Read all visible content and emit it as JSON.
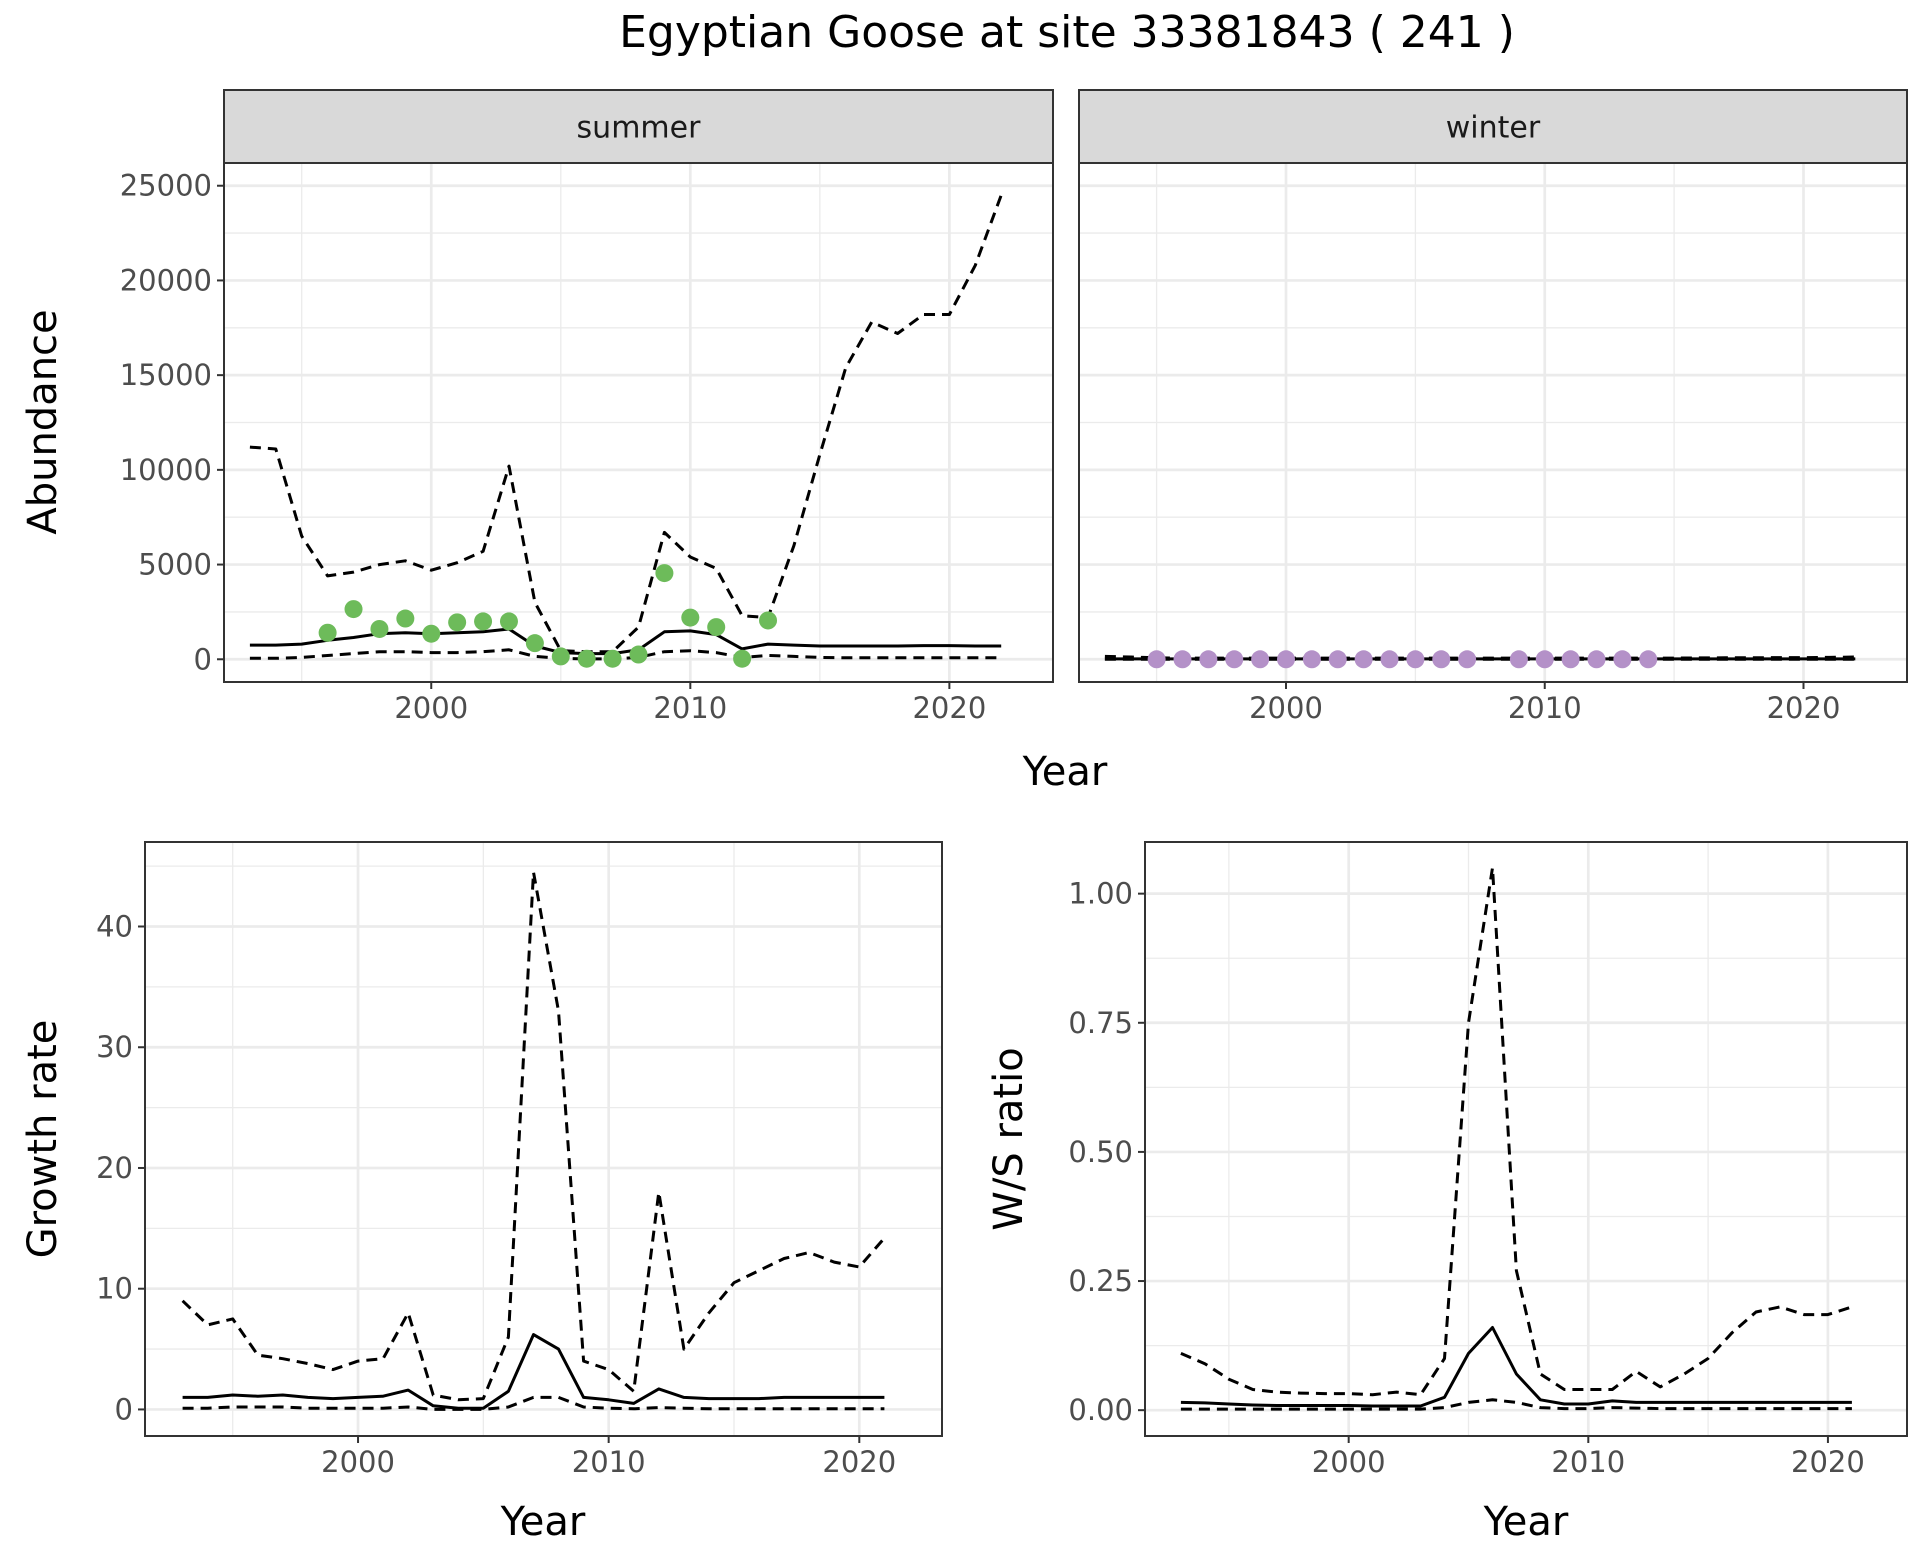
{
  "page": {
    "title": "Egyptian Goose at site 33381843 ( 241 )"
  },
  "colors": {
    "summer_points": "#6dbb5a",
    "winter_points": "#b491c8",
    "lines": "#000000",
    "grid": "#ebebeb",
    "strip_fill": "#d9d9d9",
    "panel_border": "#333333"
  },
  "chart_data": [
    {
      "id": "abundance",
      "type": "line",
      "facets": [
        "summer",
        "winter"
      ],
      "xlabel": "Year",
      "ylabel": "Abundance",
      "xlim": [
        1992,
        2024
      ],
      "ylim": [
        -1200,
        26200
      ],
      "xticks": [
        2000,
        2010,
        2020
      ],
      "yticks": [
        0,
        5000,
        10000,
        15000,
        20000,
        25000
      ],
      "x": [
        1993,
        1994,
        1995,
        1996,
        1997,
        1998,
        1999,
        2000,
        2001,
        2002,
        2003,
        2004,
        2005,
        2006,
        2007,
        2008,
        2009,
        2010,
        2011,
        2012,
        2013,
        2014,
        2015,
        2016,
        2017,
        2018,
        2019,
        2020,
        2021,
        2022
      ],
      "summer": {
        "fit": [
          750,
          750,
          800,
          1000,
          1150,
          1350,
          1400,
          1350,
          1400,
          1450,
          1600,
          700,
          350,
          300,
          300,
          500,
          1450,
          1500,
          1300,
          550,
          800,
          750,
          700,
          700,
          700,
          700,
          720,
          720,
          700,
          700
        ],
        "upper": [
          11200,
          11100,
          6500,
          4400,
          4600,
          5000,
          5200,
          4700,
          5100,
          5700,
          10200,
          3000,
          450,
          400,
          400,
          1700,
          6700,
          5400,
          4800,
          2300,
          2200,
          6000,
          10800,
          15400,
          17800,
          17200,
          18200,
          18200,
          20800,
          24500
        ],
        "lower": [
          50,
          50,
          100,
          200,
          300,
          400,
          400,
          350,
          350,
          400,
          500,
          150,
          50,
          20,
          20,
          100,
          400,
          450,
          350,
          100,
          200,
          150,
          100,
          80,
          80,
          80,
          80,
          80,
          80,
          80
        ],
        "observed": {
          "years": [
            1996,
            1997,
            1998,
            1999,
            2000,
            2001,
            2002,
            2003,
            2004,
            2005,
            2006,
            2007,
            2008,
            2009,
            2010,
            2011,
            2012,
            2013
          ],
          "values": [
            1400,
            2650,
            1600,
            2150,
            1350,
            1950,
            2000,
            2000,
            850,
            150,
            30,
            30,
            250,
            4550,
            2200,
            1700,
            30,
            2050
          ]
        }
      },
      "winter": {
        "fit": [
          20,
          20,
          20,
          20,
          20,
          20,
          20,
          20,
          20,
          20,
          20,
          20,
          20,
          20,
          20,
          20,
          20,
          20,
          20,
          20,
          20,
          20,
          20,
          20,
          20,
          20,
          20,
          20,
          20,
          20
        ],
        "upper": [
          150,
          120,
          80,
          60,
          60,
          60,
          60,
          60,
          60,
          60,
          60,
          60,
          60,
          60,
          60,
          60,
          60,
          60,
          60,
          60,
          60,
          60,
          60,
          70,
          80,
          80,
          90,
          90,
          100,
          120
        ],
        "lower": [
          2,
          2,
          2,
          2,
          2,
          2,
          2,
          2,
          2,
          2,
          2,
          2,
          2,
          2,
          2,
          2,
          2,
          2,
          2,
          2,
          2,
          2,
          2,
          2,
          2,
          2,
          2,
          2,
          2,
          2
        ],
        "observed": {
          "years": [
            1995,
            1996,
            1997,
            1998,
            1999,
            2000,
            2001,
            2002,
            2003,
            2004,
            2005,
            2006,
            2007,
            2009,
            2010,
            2011,
            2012,
            2013,
            2014
          ],
          "values": [
            0,
            0,
            0,
            0,
            0,
            0,
            0,
            0,
            0,
            0,
            0,
            0,
            0,
            0,
            0,
            0,
            0,
            0,
            0
          ]
        }
      }
    },
    {
      "id": "growth",
      "type": "line",
      "xlabel": "Year",
      "ylabel": "Growth rate",
      "xlim": [
        1991.5,
        2023.3
      ],
      "ylim": [
        -2.2,
        47
      ],
      "xticks": [
        2000,
        2010,
        2020
      ],
      "yticks": [
        0,
        10,
        20,
        30,
        40
      ],
      "x": [
        1993,
        1994,
        1995,
        1996,
        1997,
        1998,
        1999,
        2000,
        2001,
        2002,
        2003,
        2004,
        2005,
        2006,
        2007,
        2008,
        2009,
        2010,
        2011,
        2012,
        2013,
        2014,
        2015,
        2016,
        2017,
        2018,
        2019,
        2020,
        2021
      ],
      "fit": [
        1.0,
        1.0,
        1.2,
        1.1,
        1.2,
        1.0,
        0.9,
        1.0,
        1.1,
        1.6,
        0.3,
        0.1,
        0.1,
        1.5,
        6.2,
        5.0,
        1.0,
        0.8,
        0.5,
        1.7,
        1.0,
        0.9,
        0.9,
        0.9,
        1.0,
        1.0,
        1.0,
        1.0,
        1.0
      ],
      "upper": [
        9.0,
        7.0,
        7.5,
        4.5,
        4.2,
        3.8,
        3.3,
        4.0,
        4.2,
        8.0,
        1.2,
        0.8,
        0.9,
        6.0,
        44.5,
        33.0,
        4.0,
        3.3,
        1.5,
        18.0,
        5.0,
        8.0,
        10.5,
        11.5,
        12.5,
        13.0,
        12.2,
        11.8,
        14.2
      ],
      "lower": [
        0.1,
        0.1,
        0.2,
        0.2,
        0.2,
        0.1,
        0.1,
        0.1,
        0.1,
        0.2,
        0.0,
        0.0,
        0.0,
        0.2,
        1.0,
        1.0,
        0.2,
        0.1,
        0.05,
        0.15,
        0.1,
        0.05,
        0.05,
        0.05,
        0.05,
        0.05,
        0.05,
        0.05,
        0.05
      ]
    },
    {
      "id": "ratio",
      "type": "line",
      "xlabel": "Year",
      "ylabel": "W/S ratio",
      "xlim": [
        1991.5,
        2023.3
      ],
      "ylim": [
        -0.05,
        1.1
      ],
      "xticks": [
        2000,
        2010,
        2020
      ],
      "yticks": [
        0.0,
        0.25,
        0.5,
        0.75,
        1.0
      ],
      "yticklabels": [
        "0.00",
        "0.25",
        "0.50",
        "0.75",
        "1.00"
      ],
      "x": [
        1993,
        1994,
        1995,
        1996,
        1997,
        1998,
        1999,
        2000,
        2001,
        2002,
        2003,
        2004,
        2005,
        2006,
        2007,
        2008,
        2009,
        2010,
        2011,
        2012,
        2013,
        2014,
        2015,
        2016,
        2017,
        2018,
        2019,
        2020,
        2021
      ],
      "fit": [
        0.015,
        0.014,
        0.012,
        0.01,
        0.009,
        0.009,
        0.009,
        0.009,
        0.008,
        0.008,
        0.008,
        0.025,
        0.11,
        0.16,
        0.07,
        0.02,
        0.012,
        0.012,
        0.018,
        0.015,
        0.015,
        0.015,
        0.015,
        0.015,
        0.015,
        0.015,
        0.015,
        0.015,
        0.015
      ],
      "upper": [
        0.11,
        0.09,
        0.06,
        0.04,
        0.035,
        0.033,
        0.032,
        0.032,
        0.03,
        0.035,
        0.03,
        0.1,
        0.75,
        1.05,
        0.27,
        0.07,
        0.04,
        0.04,
        0.04,
        0.075,
        0.045,
        0.07,
        0.1,
        0.15,
        0.19,
        0.2,
        0.185,
        0.185,
        0.2
      ],
      "lower": [
        0.002,
        0.002,
        0.002,
        0.002,
        0.002,
        0.002,
        0.002,
        0.002,
        0.002,
        0.002,
        0.002,
        0.005,
        0.015,
        0.02,
        0.015,
        0.005,
        0.003,
        0.003,
        0.005,
        0.004,
        0.003,
        0.003,
        0.003,
        0.003,
        0.003,
        0.003,
        0.003,
        0.003,
        0.003
      ]
    }
  ]
}
